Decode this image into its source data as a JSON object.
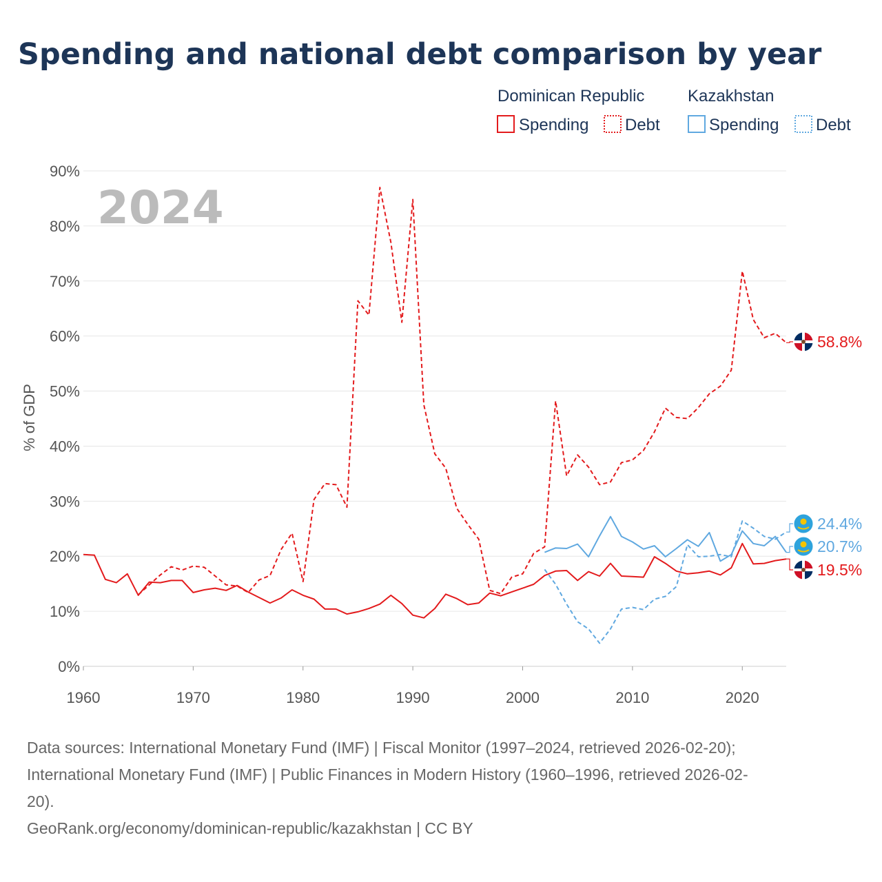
{
  "title": "Spending and national debt comparison by year",
  "year_label": "2024",
  "legend": {
    "groups": [
      {
        "country": "Dominican Republic",
        "items": [
          {
            "label": "Spending",
            "style": "solid"
          },
          {
            "label": "Debt",
            "style": "dotted"
          }
        ],
        "color": "#e31a1c"
      },
      {
        "country": "Kazakhstan",
        "items": [
          {
            "label": "Spending",
            "style": "solid"
          },
          {
            "label": "Debt",
            "style": "dotted"
          }
        ],
        "color": "#5fa8e0"
      }
    ]
  },
  "colors": {
    "dominican": "#e31a1c",
    "kazakhstan": "#5fa8e0"
  },
  "sources": {
    "line1": "Data sources: International Monetary Fund (IMF) | Fiscal Monitor (1997–2024, retrieved 2026-02-20);",
    "line2": "International Monetary Fund (IMF) | Public Finances in Modern History (1960–1996, retrieved 2026-02-",
    "line3": "20).",
    "line4": "GeoRank.org/economy/dominican-republic/kazakhstan | CC BY"
  },
  "chart_data": {
    "type": "line",
    "title": "Spending and national debt comparison by year",
    "xlabel": "",
    "ylabel": "% of GDP",
    "xlim": [
      1960,
      2024
    ],
    "ylim": [
      0,
      90
    ],
    "xticks": [
      1960,
      1970,
      1980,
      1990,
      2000,
      2010,
      2020
    ],
    "yticks": [
      0,
      10,
      20,
      30,
      40,
      50,
      60,
      70,
      80,
      90
    ],
    "ytick_labels": [
      "0%",
      "10%",
      "20%",
      "30%",
      "40%",
      "50%",
      "60%",
      "70%",
      "80%",
      "90%"
    ],
    "grid": true,
    "series": [
      {
        "name": "Dominican Republic Spending",
        "color": "#e31a1c",
        "dash": "solid",
        "x": [
          1960,
          1961,
          1962,
          1963,
          1964,
          1965,
          1966,
          1967,
          1968,
          1969,
          1970,
          1971,
          1972,
          1973,
          1974,
          1975,
          1976,
          1977,
          1978,
          1979,
          1980,
          1981,
          1982,
          1983,
          1984,
          1985,
          1986,
          1987,
          1988,
          1989,
          1990,
          1991,
          1992,
          1993,
          1994,
          1995,
          1996,
          1997,
          1998,
          1999,
          2000,
          2001,
          2002,
          2003,
          2004,
          2005,
          2006,
          2007,
          2008,
          2009,
          2010,
          2011,
          2012,
          2013,
          2014,
          2015,
          2016,
          2017,
          2018,
          2019,
          2020,
          2021,
          2022,
          2023,
          2024
        ],
        "values": [
          20.3,
          20.2,
          15.8,
          15.2,
          16.8,
          12.9,
          15.3,
          15.2,
          15.6,
          15.6,
          13.4,
          13.9,
          14.2,
          13.8,
          14.7,
          13.5,
          12.5,
          11.5,
          12.4,
          13.9,
          12.9,
          12.2,
          10.4,
          10.4,
          9.5,
          9.9,
          10.5,
          11.3,
          12.9,
          11.4,
          9.3,
          8.8,
          10.5,
          13.1,
          12.3,
          11.2,
          11.5,
          13.3,
          12.8,
          13.5,
          14.2,
          14.9,
          16.5,
          17.3,
          17.4,
          15.6,
          17.2,
          16.4,
          18.7,
          16.4,
          16.3,
          16.2,
          19.9,
          18.7,
          17.3,
          16.8,
          17.0,
          17.3,
          16.6,
          17.9,
          22.3,
          18.6,
          18.7,
          19.2,
          19.5
        ]
      },
      {
        "name": "Dominican Republic Debt",
        "color": "#e31a1c",
        "dash": "dashed",
        "x": [
          1965,
          1966,
          1967,
          1968,
          1969,
          1970,
          1971,
          1972,
          1973,
          1974,
          1975,
          1976,
          1977,
          1978,
          1979,
          1980,
          1981,
          1982,
          1983,
          1984,
          1985,
          1986,
          1987,
          1988,
          1989,
          1990,
          1991,
          1992,
          1993,
          1994,
          1995,
          1996,
          1997,
          1998,
          1999,
          2000,
          2001,
          2002,
          2003,
          2004,
          2005,
          2006,
          2007,
          2008,
          2009,
          2010,
          2011,
          2012,
          2013,
          2014,
          2015,
          2016,
          2017,
          2018,
          2019,
          2020,
          2021,
          2022,
          2023,
          2024
        ],
        "values": [
          13.0,
          14.8,
          16.6,
          18.1,
          17.5,
          18.2,
          18.0,
          16.4,
          14.8,
          14.6,
          13.4,
          15.7,
          16.5,
          21.2,
          24.2,
          15.4,
          30.3,
          33.2,
          33.0,
          28.9,
          66.4,
          63.8,
          87.0,
          77.0,
          62.5,
          84.8,
          47.5,
          38.6,
          36.0,
          28.7,
          25.8,
          23.1,
          13.8,
          13.2,
          16.2,
          16.8,
          20.5,
          21.7,
          48.2,
          34.6,
          38.4,
          36.2,
          33.0,
          33.5,
          37.0,
          37.5,
          39.2,
          42.6,
          46.9,
          45.2,
          45.0,
          47.0,
          49.5,
          50.9,
          53.8,
          71.8,
          63.0,
          59.7,
          60.5,
          58.8
        ]
      },
      {
        "name": "Kazakhstan Spending",
        "color": "#5fa8e0",
        "dash": "solid",
        "x": [
          2002,
          2003,
          2004,
          2005,
          2006,
          2007,
          2008,
          2009,
          2010,
          2011,
          2012,
          2013,
          2014,
          2015,
          2016,
          2017,
          2018,
          2019,
          2020,
          2021,
          2022,
          2023,
          2024
        ],
        "values": [
          20.7,
          21.5,
          21.4,
          22.2,
          19.9,
          23.7,
          27.2,
          23.6,
          22.6,
          21.3,
          21.9,
          19.9,
          21.4,
          23.0,
          21.8,
          24.3,
          19.1,
          20.3,
          24.6,
          22.3,
          21.9,
          23.6,
          20.7
        ]
      },
      {
        "name": "Kazakhstan Debt",
        "color": "#5fa8e0",
        "dash": "dashed",
        "x": [
          2002,
          2003,
          2004,
          2005,
          2006,
          2007,
          2008,
          2009,
          2010,
          2011,
          2012,
          2013,
          2014,
          2015,
          2016,
          2017,
          2018,
          2019,
          2020,
          2021,
          2022,
          2023,
          2024
        ],
        "values": [
          17.6,
          14.9,
          11.3,
          8.1,
          6.8,
          4.2,
          6.8,
          10.4,
          10.7,
          10.3,
          12.2,
          12.7,
          14.5,
          22.1,
          19.9,
          20.0,
          20.3,
          19.9,
          26.4,
          25.1,
          23.6,
          23.1,
          24.4
        ]
      }
    ],
    "end_labels": [
      {
        "series": "Dominican Republic Debt",
        "value": 58.8,
        "text": "58.8%",
        "color": "#e31a1c",
        "flag": "dominican"
      },
      {
        "series": "Kazakhstan Debt",
        "value": 24.4,
        "text": "24.4%",
        "color": "#5fa8e0",
        "flag": "kazakhstan"
      },
      {
        "series": "Kazakhstan Spending",
        "value": 20.7,
        "text": "20.7%",
        "color": "#5fa8e0",
        "flag": "kazakhstan"
      },
      {
        "series": "Dominican Republic Spending",
        "value": 19.5,
        "text": "19.5%",
        "color": "#e31a1c",
        "flag": "dominican"
      }
    ]
  }
}
